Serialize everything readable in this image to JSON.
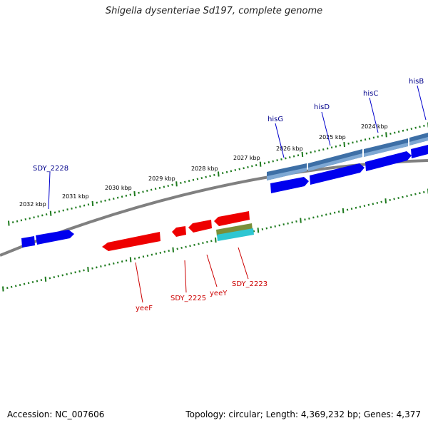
{
  "title": "Shigella dysenteriae Sd197, complete genome",
  "accession_text": "Accession: NC_007606",
  "topology_text": "Topology: circular; Length: 4,369,232 bp; Genes: 4,377",
  "colors": {
    "backbone": "#808080",
    "tick": "#1e7a1e",
    "forward_gene": "#0000ee",
    "reverse_gene": "#ee0000",
    "operon": "#4f82b8",
    "rna_olive": "#7a8f3a",
    "rna_cyan": "#2ec6d2",
    "forward_label": "#00008b",
    "reverse_label": "#cc0000"
  },
  "kbp_labels": [
    {
      "id": "kbp-2024",
      "text": "2024 kbp"
    },
    {
      "id": "kbp-2025",
      "text": "2025 kbp"
    },
    {
      "id": "kbp-2026",
      "text": "2026 kbp"
    },
    {
      "id": "kbp-2027",
      "text": "2027 kbp"
    },
    {
      "id": "kbp-2028",
      "text": "2028 kbp"
    },
    {
      "id": "kbp-2029",
      "text": "2029 kbp"
    },
    {
      "id": "kbp-2030",
      "text": "2030 kbp"
    },
    {
      "id": "kbp-2031",
      "text": "2031 kbp"
    },
    {
      "id": "kbp-2032",
      "text": "2032 kbp"
    }
  ],
  "genes": [
    {
      "id": "hisB",
      "label": "hisB",
      "strand": "forward"
    },
    {
      "id": "hisC",
      "label": "hisC",
      "strand": "forward"
    },
    {
      "id": "hisD",
      "label": "hisD",
      "strand": "forward"
    },
    {
      "id": "hisG",
      "label": "hisG",
      "strand": "forward"
    },
    {
      "id": "SDY_2228",
      "label": "SDY_2228",
      "strand": "forward"
    },
    {
      "id": "yeeF",
      "label": "yeeF",
      "strand": "reverse"
    },
    {
      "id": "SDY_2225",
      "label": "SDY_2225",
      "strand": "reverse"
    },
    {
      "id": "yeeY",
      "label": "yeeY",
      "strand": "reverse"
    },
    {
      "id": "SDY_2223",
      "label": "SDY_2223",
      "strand": "reverse"
    }
  ]
}
